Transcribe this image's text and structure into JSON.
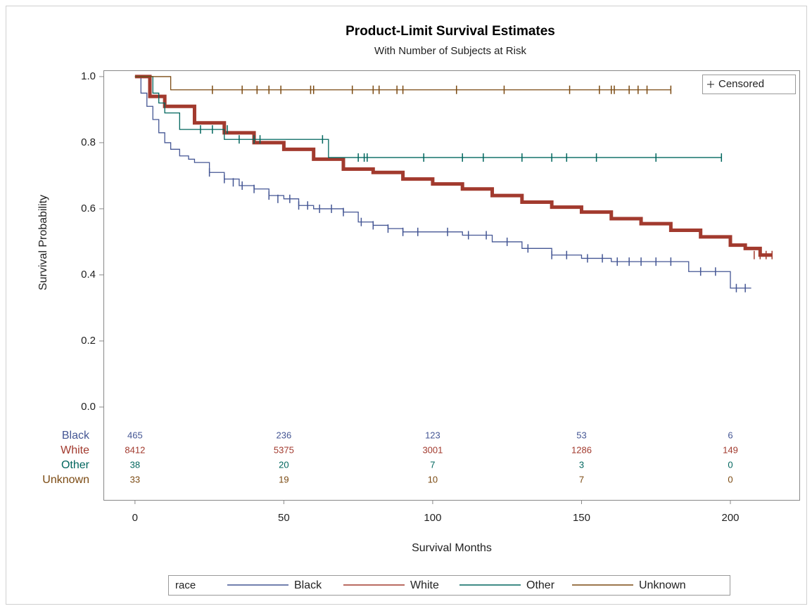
{
  "chart_data": {
    "type": "survival",
    "title": "Product-Limit Survival Estimates",
    "subtitle": "With Number of Subjects at Risk",
    "xlabel": "Survival Months",
    "ylabel": "Survival Probability",
    "xlim": [
      -10.6,
      223.4
    ],
    "ylim": [
      -0.281,
      1.019
    ],
    "xticks": [
      0,
      50,
      100,
      150,
      200
    ],
    "yticks": [
      {
        "value": 0,
        "label": "0.0"
      },
      0.2,
      0.4,
      0.6,
      0.8,
      {
        "value": 1,
        "label": "1.0"
      }
    ],
    "censored_legend": "Censored",
    "legend_title": "race",
    "series": [
      {
        "name": "Black",
        "color": "#445694",
        "width": 1.3,
        "x": [
          0,
          2,
          4,
          6,
          8,
          10,
          12,
          15,
          18,
          20,
          25,
          30,
          35,
          40,
          45,
          50,
          55,
          60,
          65,
          70,
          75,
          80,
          85,
          90,
          100,
          110,
          120,
          130,
          140,
          150,
          160,
          170,
          180,
          186,
          190,
          198,
          200,
          207
        ],
        "values": [
          1.0,
          0.95,
          0.91,
          0.87,
          0.83,
          0.8,
          0.78,
          0.76,
          0.75,
          0.74,
          0.71,
          0.69,
          0.67,
          0.66,
          0.64,
          0.63,
          0.61,
          0.6,
          0.6,
          0.59,
          0.56,
          0.55,
          0.54,
          0.53,
          0.53,
          0.52,
          0.5,
          0.48,
          0.46,
          0.45,
          0.44,
          0.44,
          0.44,
          0.41,
          0.41,
          0.41,
          0.36,
          0.36
        ],
        "censored": {
          "x": [
            25,
            30,
            33,
            36,
            40,
            45,
            48,
            52,
            55,
            58,
            62,
            66,
            70,
            76,
            80,
            85,
            90,
            95,
            105,
            112,
            118,
            125,
            132,
            140,
            145,
            152,
            157,
            162,
            166,
            170,
            175,
            180,
            190,
            195,
            202,
            205
          ],
          "y": [
            0.71,
            0.69,
            0.68,
            0.67,
            0.66,
            0.64,
            0.63,
            0.63,
            0.61,
            0.61,
            0.6,
            0.6,
            0.59,
            0.56,
            0.55,
            0.54,
            0.53,
            0.53,
            0.53,
            0.52,
            0.52,
            0.5,
            0.48,
            0.46,
            0.46,
            0.45,
            0.45,
            0.44,
            0.44,
            0.44,
            0.44,
            0.44,
            0.41,
            0.41,
            0.36,
            0.36
          ]
        }
      },
      {
        "name": "White",
        "color": "#a23a2e",
        "width": 5,
        "x": [
          0,
          5,
          10,
          20,
          30,
          40,
          50,
          60,
          70,
          80,
          90,
          100,
          110,
          120,
          130,
          140,
          150,
          160,
          170,
          180,
          190,
          200,
          205,
          210,
          214
        ],
        "values": [
          1.0,
          0.94,
          0.91,
          0.86,
          0.83,
          0.8,
          0.78,
          0.75,
          0.72,
          0.71,
          0.69,
          0.675,
          0.66,
          0.64,
          0.62,
          0.605,
          0.59,
          0.57,
          0.555,
          0.535,
          0.515,
          0.49,
          0.48,
          0.46,
          0.46
        ],
        "censored": {
          "x": [
            208,
            210,
            212,
            214
          ],
          "y": [
            0.46,
            0.46,
            0.46,
            0.46
          ]
        }
      },
      {
        "name": "Other",
        "color": "#01665e",
        "width": 1.3,
        "x": [
          0,
          5,
          6,
          8,
          10,
          15,
          30,
          64,
          65,
          197
        ],
        "values": [
          1.0,
          1.0,
          0.95,
          0.92,
          0.89,
          0.84,
          0.81,
          0.81,
          0.755,
          0.755
        ],
        "censored": {
          "x": [
            22,
            26,
            31,
            35,
            40,
            42,
            63,
            75,
            77,
            78,
            97,
            110,
            117,
            130,
            140,
            145,
            155,
            175,
            197
          ],
          "y": [
            0.84,
            0.84,
            0.84,
            0.81,
            0.81,
            0.81,
            0.81,
            0.755,
            0.755,
            0.755,
            0.755,
            0.755,
            0.755,
            0.755,
            0.755,
            0.755,
            0.755,
            0.755,
            0.755
          ]
        }
      },
      {
        "name": "Unknown",
        "color": "#7b4a12",
        "width": 1.3,
        "x": [
          0,
          12,
          180
        ],
        "values": [
          1.0,
          0.96,
          0.96
        ],
        "censored": {
          "x": [
            26,
            36,
            41,
            45,
            49,
            59,
            60,
            73,
            80,
            82,
            88,
            90,
            108,
            124,
            146,
            156,
            160,
            161,
            166,
            169,
            172,
            180
          ],
          "y": [
            0.96,
            0.96,
            0.96,
            0.96,
            0.96,
            0.96,
            0.96,
            0.96,
            0.96,
            0.96,
            0.96,
            0.96,
            0.96,
            0.96,
            0.96,
            0.96,
            0.96,
            0.96,
            0.96,
            0.96,
            0.96,
            0.96
          ]
        }
      }
    ],
    "risk_table": {
      "x": [
        0,
        50,
        100,
        150,
        200
      ],
      "rows": [
        {
          "name": "Black",
          "color": "#445694",
          "values": [
            465,
            236,
            123,
            53,
            6
          ]
        },
        {
          "name": "White",
          "color": "#a23a2e",
          "values": [
            8412,
            5375,
            3001,
            1286,
            149
          ]
        },
        {
          "name": "Other",
          "color": "#01665e",
          "values": [
            38,
            20,
            7,
            3,
            0
          ]
        },
        {
          "name": "Unknown",
          "color": "#7b4a12",
          "values": [
            33,
            19,
            10,
            7,
            0
          ]
        }
      ]
    }
  }
}
